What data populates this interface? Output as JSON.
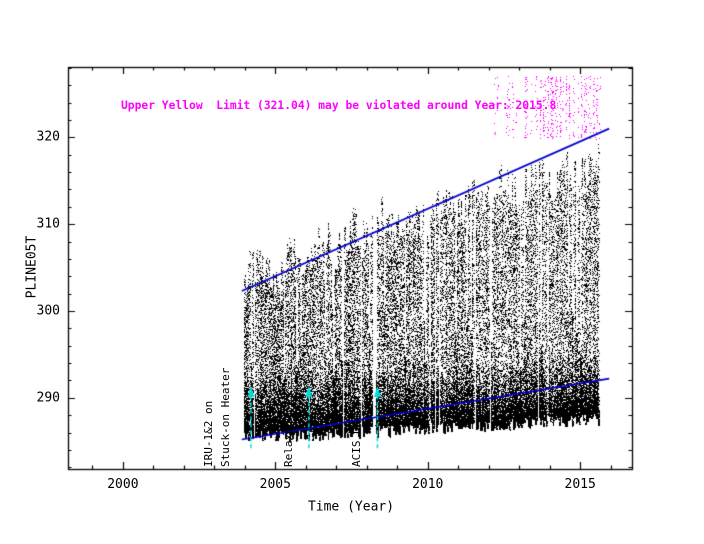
{
  "chart_data": {
    "type": "scatter",
    "title": "",
    "warning": "Upper Yellow  Limit (321.04) may be violated around Year: 2015.8",
    "warning_color": "#ff00ff",
    "xlabel": "Time (Year)",
    "ylabel": "PLINE05T",
    "xlim": [
      1998.2,
      2016.7
    ],
    "ylim": [
      281.8,
      328.1
    ],
    "x_ticks": [
      2000,
      2005,
      2010,
      2015
    ],
    "y_ticks": [
      290,
      300,
      310,
      320
    ],
    "x_minor_tick_step": 1,
    "y_minor_tick_step": 2,
    "point_color": "#000000",
    "violation_point_color": "#ff00ff",
    "trend_line_color": "#0000cc",
    "event_marker_color": "#00dddd",
    "upper_trend_line": {
      "x": [
        2003.9,
        2015.95
      ],
      "y": [
        302.3,
        321.0
      ]
    },
    "lower_trend_line": {
      "x": [
        2003.9,
        2015.95
      ],
      "y": [
        285.2,
        292.2
      ]
    },
    "data_start_year": 2004.0,
    "data_end_year": 2015.65,
    "scatter_envelope": {
      "t": [
        2004.0,
        2004.5,
        2005.0,
        2005.5,
        2006.0,
        2006.5,
        2007.0,
        2007.5,
        2008.0,
        2008.5,
        2009.0,
        2009.5,
        2010.0,
        2010.5,
        2011.0,
        2011.5,
        2012.0,
        2012.5,
        2013.0,
        2013.5,
        2014.0,
        2014.5,
        2015.0,
        2015.5
      ],
      "upper": [
        304.5,
        306.0,
        303.5,
        307.0,
        305.0,
        309.0,
        306.5,
        310.0,
        308.0,
        311.0,
        308.5,
        312.0,
        310.0,
        313.0,
        311.0,
        314.0,
        312.0,
        315.0,
        313.0,
        316.0,
        314.0,
        317.0,
        315.0,
        317.5
      ],
      "lower": [
        285.3,
        285.3,
        285.4,
        285.4,
        285.5,
        285.5,
        285.6,
        285.7,
        285.8,
        285.9,
        286.0,
        286.1,
        286.2,
        286.3,
        286.4,
        286.5,
        286.6,
        286.7,
        286.8,
        286.9,
        287.0,
        287.1,
        287.2,
        287.3
      ]
    },
    "violation_band": {
      "t_start": 2011.9,
      "t_end": 2015.65,
      "ymin": 319.8,
      "ymax": 327.0
    },
    "events": [
      {
        "t": 2004.1,
        "label": "IRU-1&2 on",
        "has_line": false
      },
      {
        "t": 2004.2,
        "label": "Stuck-on Heater",
        "has_line": true
      },
      {
        "t": 2006.1,
        "label": "Relaxed",
        "has_line": true
      },
      {
        "t": 2008.35,
        "label": "ACIS DH off",
        "has_line": true
      }
    ]
  }
}
